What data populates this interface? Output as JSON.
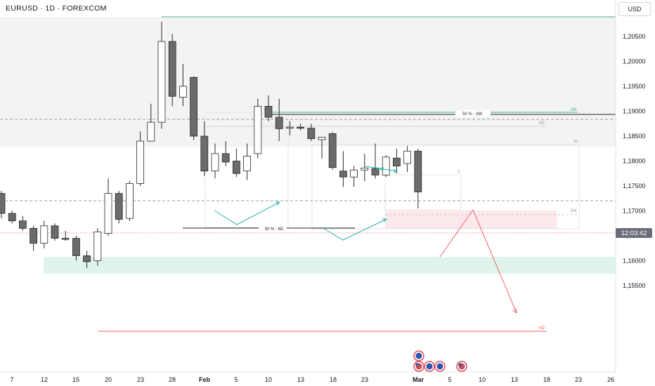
{
  "header": {
    "title": "EURUSD · 1D · FOREXCOM",
    "currency": "USD"
  },
  "price_scale": {
    "ticks": [
      "1,20500",
      "1,20000",
      "1,19500",
      "1,19000",
      "1,18500",
      "1,18000",
      "1,17500",
      "1,17000",
      "1,16500",
      "1,16000",
      "1,15500"
    ],
    "tick_values": [
      1.205,
      1.2,
      1.195,
      1.19,
      1.185,
      1.18,
      1.175,
      1.17,
      1.165,
      1.16,
      1.155
    ],
    "countdown": "12:03:42"
  },
  "time_scale": {
    "labels": [
      "7",
      "12",
      "15",
      "20",
      "23",
      "28",
      "Feb",
      "5",
      "10",
      "13",
      "18",
      "23",
      "Mar",
      "5",
      "10",
      "13",
      "18",
      "23",
      "26"
    ],
    "bold": [
      "Feb",
      "Mar"
    ]
  },
  "annotations": {
    "fifty_3w": "50 % - 3W",
    "fifty_6d": "50 % - 6D",
    "smt": "SMT",
    "tag_2w_top": "2W",
    "tag_2w_mid": "2W",
    "tag_6d_top": "6D",
    "tag_6d_bottom": "6D",
    "tag_w": "W",
    "tag_d": "D"
  },
  "colors": {
    "bull": "#ffffff",
    "bear": "#6b6b6b",
    "wick": "#2a2a2a",
    "green_line": "#4caf8a",
    "red_line": "#f0626a",
    "teal_zone": "#dff5ec",
    "pink_zone": "#fde8ec",
    "gray_zone": "#f3f3f3",
    "arrow_teal": "#26b1a8"
  },
  "chart_data": {
    "type": "candlestick",
    "symbol": "EURUSD",
    "timeframe": "1D",
    "candles": [
      {
        "o": 1.1735,
        "h": 1.174,
        "l": 1.1685,
        "c": 1.1695
      },
      {
        "o": 1.1695,
        "h": 1.17,
        "l": 1.1675,
        "c": 1.168
      },
      {
        "o": 1.168,
        "h": 1.169,
        "l": 1.166,
        "c": 1.1665
      },
      {
        "o": 1.1665,
        "h": 1.167,
        "l": 1.162,
        "c": 1.1635
      },
      {
        "o": 1.1635,
        "h": 1.168,
        "l": 1.1625,
        "c": 1.167
      },
      {
        "o": 1.167,
        "h": 1.1675,
        "l": 1.164,
        "c": 1.1645
      },
      {
        "o": 1.1645,
        "h": 1.166,
        "l": 1.164,
        "c": 1.1643
      },
      {
        "o": 1.1645,
        "h": 1.165,
        "l": 1.16,
        "c": 1.161
      },
      {
        "o": 1.161,
        "h": 1.162,
        "l": 1.1585,
        "c": 1.1598
      },
      {
        "o": 1.16,
        "h": 1.1665,
        "l": 1.159,
        "c": 1.1658
      },
      {
        "o": 1.1655,
        "h": 1.1765,
        "l": 1.165,
        "c": 1.1735
      },
      {
        "o": 1.1735,
        "h": 1.174,
        "l": 1.1675,
        "c": 1.1683
      },
      {
        "o": 1.1685,
        "h": 1.176,
        "l": 1.168,
        "c": 1.1755
      },
      {
        "o": 1.1755,
        "h": 1.186,
        "l": 1.175,
        "c": 1.184
      },
      {
        "o": 1.184,
        "h": 1.1915,
        "l": 1.184,
        "c": 1.1878
      },
      {
        "o": 1.1878,
        "h": 1.208,
        "l": 1.1865,
        "c": 1.204
      },
      {
        "o": 1.204,
        "h": 1.2055,
        "l": 1.191,
        "c": 1.193
      },
      {
        "o": 1.1928,
        "h": 1.1995,
        "l": 1.191,
        "c": 1.195
      },
      {
        "o": 1.1968,
        "h": 1.197,
        "l": 1.1842,
        "c": 1.185
      },
      {
        "o": 1.185,
        "h": 1.188,
        "l": 1.177,
        "c": 1.178
      },
      {
        "o": 1.178,
        "h": 1.1835,
        "l": 1.1765,
        "c": 1.1815
      },
      {
        "o": 1.1815,
        "h": 1.184,
        "l": 1.179,
        "c": 1.1798
      },
      {
        "o": 1.18,
        "h": 1.1825,
        "l": 1.1768,
        "c": 1.1775
      },
      {
        "o": 1.178,
        "h": 1.1835,
        "l": 1.1762,
        "c": 1.181
      },
      {
        "o": 1.1815,
        "h": 1.1925,
        "l": 1.1805,
        "c": 1.191
      },
      {
        "o": 1.191,
        "h": 1.1932,
        "l": 1.188,
        "c": 1.1888
      },
      {
        "o": 1.1888,
        "h": 1.1925,
        "l": 1.184,
        "c": 1.1865
      },
      {
        "o": 1.1868,
        "h": 1.188,
        "l": 1.1852,
        "c": 1.1868
      },
      {
        "o": 1.1868,
        "h": 1.1875,
        "l": 1.1862,
        "c": 1.1866
      },
      {
        "o": 1.1866,
        "h": 1.1875,
        "l": 1.184,
        "c": 1.1845
      },
      {
        "o": 1.1843,
        "h": 1.1846,
        "l": 1.1805,
        "c": 1.1848
      },
      {
        "o": 1.1855,
        "h": 1.1858,
        "l": 1.1783,
        "c": 1.1787
      },
      {
        "o": 1.178,
        "h": 1.182,
        "l": 1.1748,
        "c": 1.1768
      },
      {
        "o": 1.1768,
        "h": 1.179,
        "l": 1.1748,
        "c": 1.1782
      },
      {
        "o": 1.1782,
        "h": 1.1815,
        "l": 1.176,
        "c": 1.1786
      },
      {
        "o": 1.1785,
        "h": 1.1835,
        "l": 1.1765,
        "c": 1.1772
      },
      {
        "o": 1.1772,
        "h": 1.1812,
        "l": 1.1768,
        "c": 1.1808
      },
      {
        "o": 1.1806,
        "h": 1.1825,
        "l": 1.1775,
        "c": 1.179
      },
      {
        "o": 1.1795,
        "h": 1.183,
        "l": 1.1778,
        "c": 1.182
      },
      {
        "o": 1.182,
        "h": 1.1825,
        "l": 1.1705,
        "c": 1.1738
      }
    ]
  }
}
